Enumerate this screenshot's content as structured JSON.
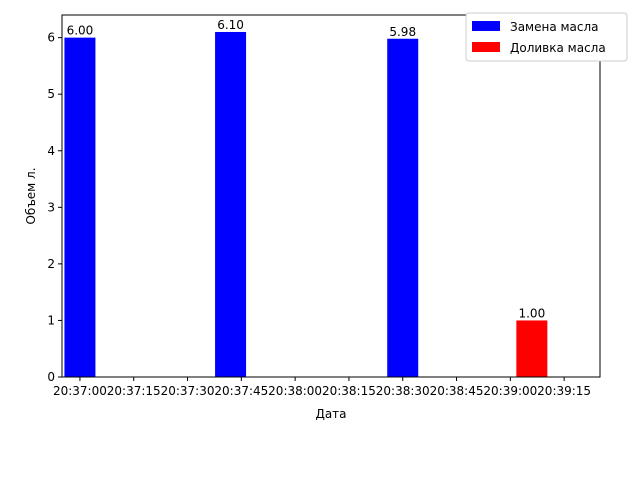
{
  "chart_data": {
    "type": "bar",
    "title": "",
    "xlabel": "Дата",
    "ylabel": "Объем л.",
    "ylim": [
      0,
      6.4
    ],
    "xlim": [
      "20:36:55",
      "20:39:25"
    ],
    "yticks": [
      0,
      1,
      2,
      3,
      4,
      5,
      6
    ],
    "xticks": [
      "20:37:00",
      "20:37:15",
      "20:37:30",
      "20:37:45",
      "20:38:00",
      "20:38:15",
      "20:38:30",
      "20:38:45",
      "20:39:00",
      "20:39:15"
    ],
    "grid": false,
    "legend_position": "top-right",
    "series": [
      {
        "name": "Замена масла",
        "color": "#0000ff",
        "points": [
          {
            "x": "20:37:00",
            "value": 6.0,
            "label": "6.00"
          },
          {
            "x": "20:37:42",
            "value": 6.1,
            "label": "6.10"
          },
          {
            "x": "20:38:30",
            "value": 5.98,
            "label": "5.98"
          }
        ]
      },
      {
        "name": "Доливка масла",
        "color": "#ff0000",
        "points": [
          {
            "x": "20:39:06",
            "value": 1.0,
            "label": "1.00"
          }
        ]
      }
    ]
  }
}
